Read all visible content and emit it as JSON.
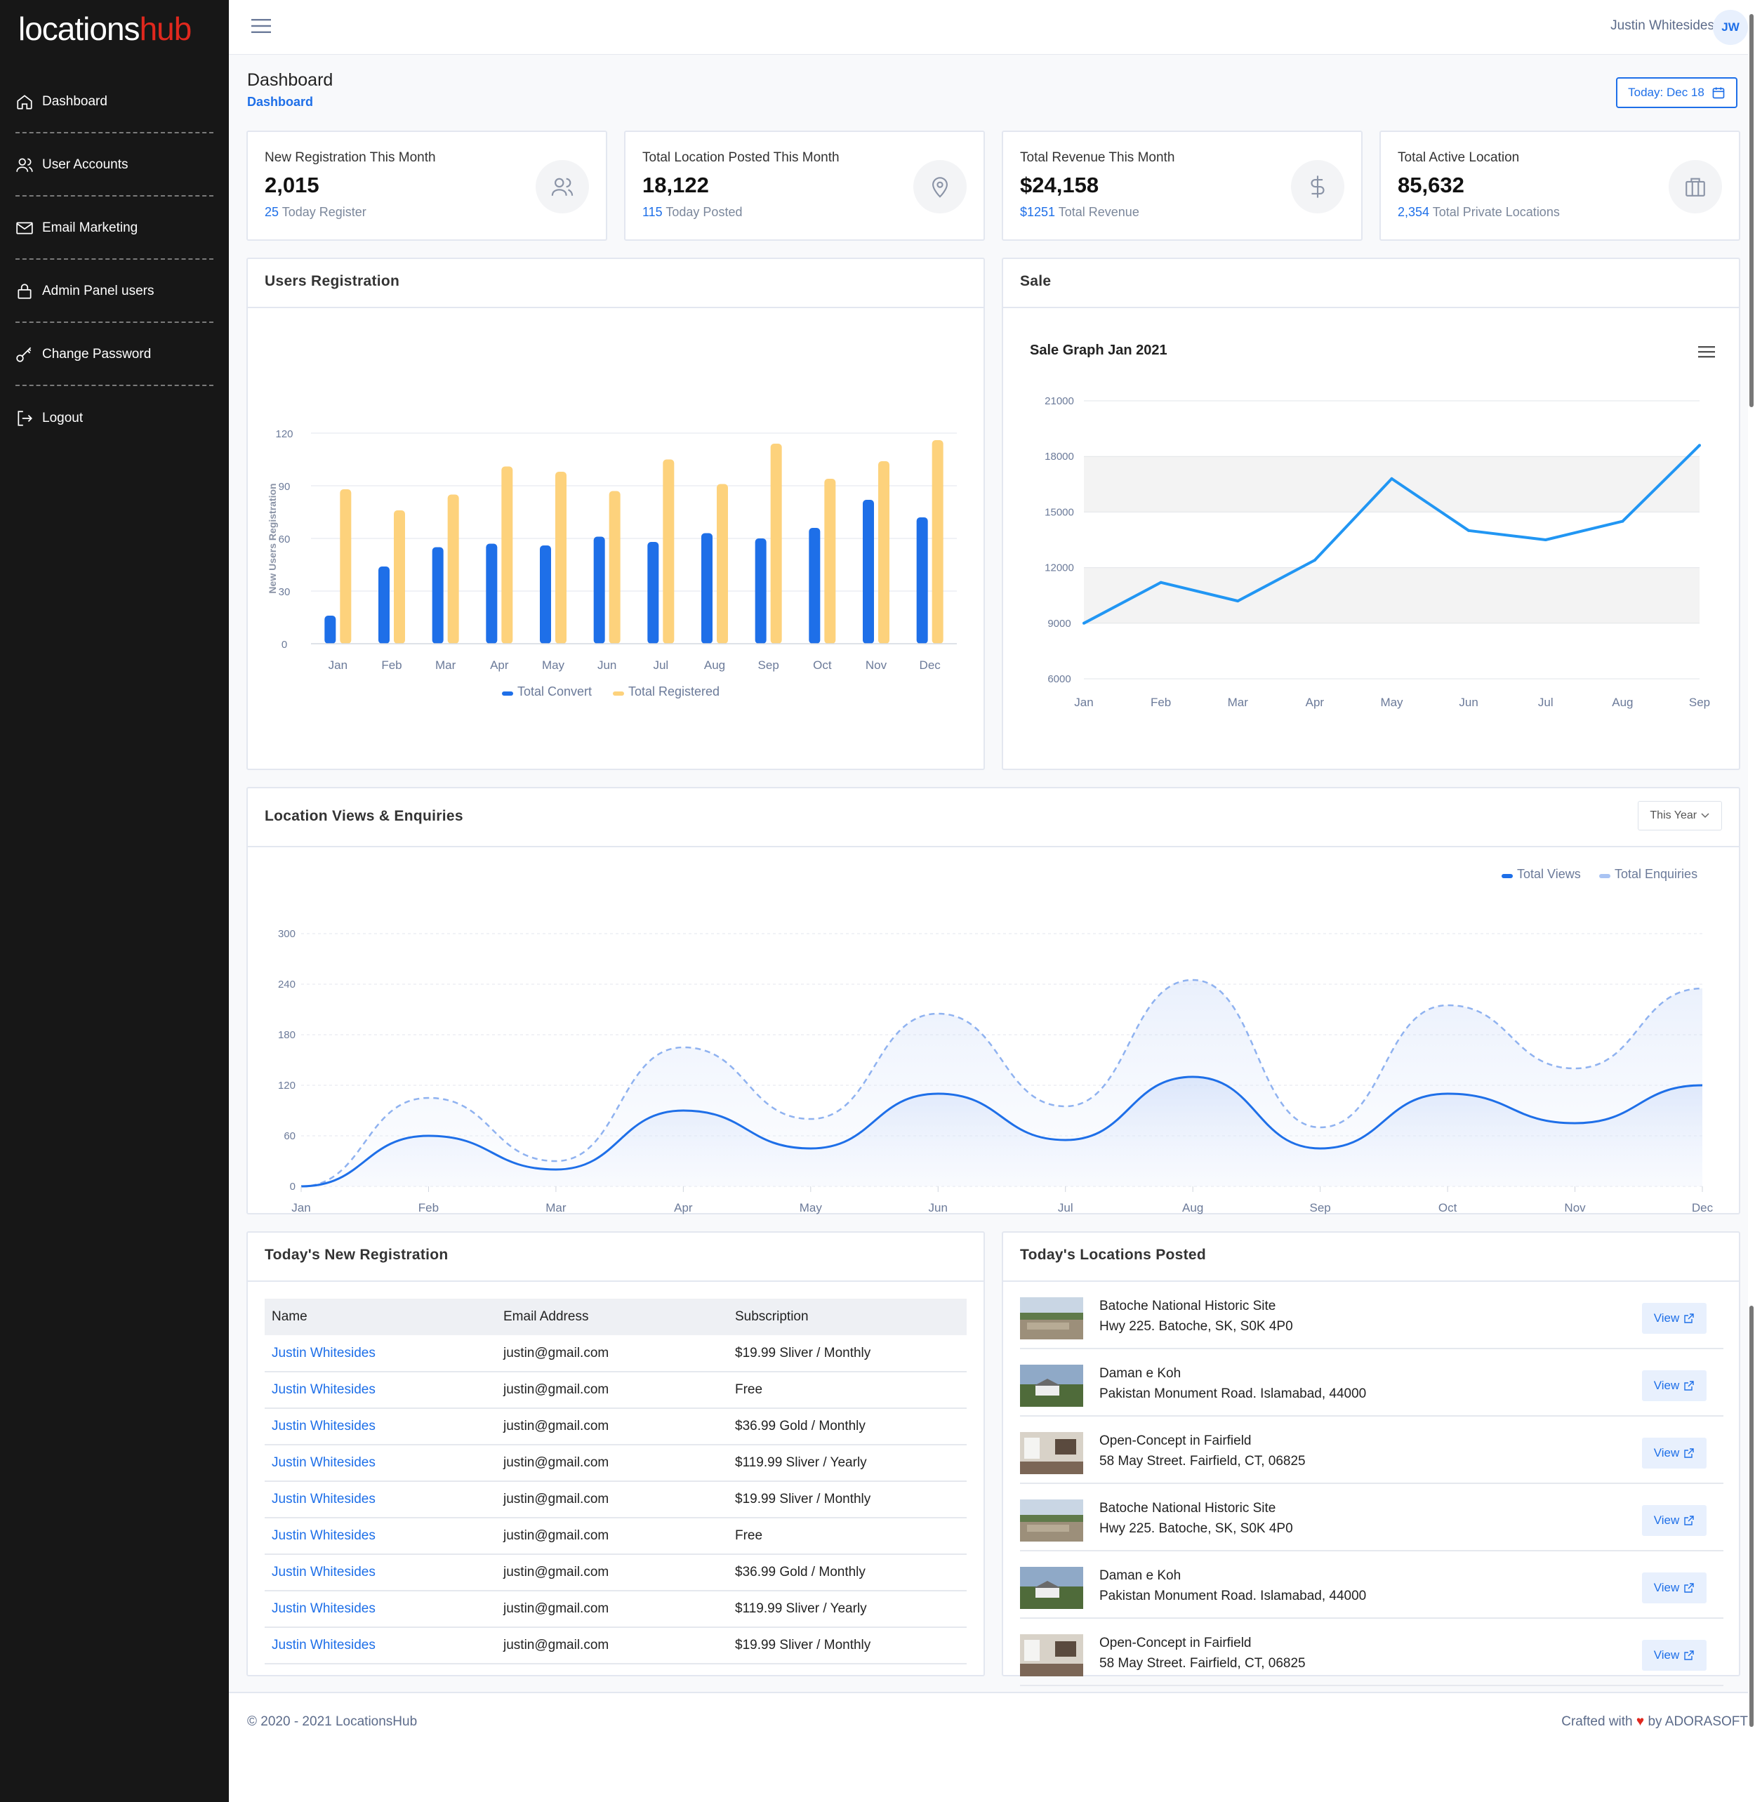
{
  "brand": {
    "name_part1": "locations",
    "name_part2": "hub"
  },
  "sidebar": {
    "items": [
      {
        "label": "Dashboard",
        "icon": "home-icon"
      },
      {
        "label": "User Accounts",
        "icon": "users-icon"
      },
      {
        "label": "Email Marketing",
        "icon": "mail-icon"
      },
      {
        "label": "Admin Panel users",
        "icon": "lock-icon"
      },
      {
        "label": "Change Password",
        "icon": "key-icon"
      },
      {
        "label": "Logout",
        "icon": "logout-icon"
      }
    ]
  },
  "header": {
    "user_name": "Justin Whitesides",
    "avatar_initials": "JW"
  },
  "page": {
    "title": "Dashboard",
    "breadcrumb": "Dashboard",
    "today_label": "Today:",
    "today_value": "Dec 18"
  },
  "stats": [
    {
      "label": "New Registration This Month",
      "value": "2,015",
      "sub_value": "25",
      "sub_label": "Today Register",
      "icon": "users-icon"
    },
    {
      "label": "Total Location Posted This Month",
      "value": "18,122",
      "sub_value": "115",
      "sub_label": "Today Posted",
      "icon": "map-pin-icon"
    },
    {
      "label": "Total Revenue This Month",
      "value": "$24,158",
      "sub_value": "$1251",
      "sub_label": "Total Revenue",
      "icon": "dollar-icon"
    },
    {
      "label": "Total Active Location",
      "value": "85,632",
      "sub_value": "2,354",
      "sub_label": "Total Private Locations",
      "icon": "briefcase-icon"
    }
  ],
  "cards": {
    "users_registration": "Users Registration",
    "sale": "Sale",
    "location_views": "Location Views & Enquiries",
    "period_select": "This Year",
    "new_registration": "Today's New Registration",
    "locations_posted": "Today's Locations Posted"
  },
  "registrations": {
    "headers": [
      "Name",
      "Email Address",
      "Subscription"
    ],
    "rows": [
      [
        "Justin Whitesides",
        "justin@gmail.com",
        "$19.99 Sliver / Monthly"
      ],
      [
        "Justin Whitesides",
        "justin@gmail.com",
        "Free"
      ],
      [
        "Justin Whitesides",
        "justin@gmail.com",
        "$36.99 Gold / Monthly"
      ],
      [
        "Justin Whitesides",
        "justin@gmail.com",
        "$119.99 Sliver / Yearly"
      ],
      [
        "Justin Whitesides",
        "justin@gmail.com",
        "$19.99 Sliver / Monthly"
      ],
      [
        "Justin Whitesides",
        "justin@gmail.com",
        "Free"
      ],
      [
        "Justin Whitesides",
        "justin@gmail.com",
        "$36.99 Gold / Monthly"
      ],
      [
        "Justin Whitesides",
        "justin@gmail.com",
        "$119.99 Sliver / Yearly"
      ],
      [
        "Justin Whitesides",
        "justin@gmail.com",
        "$19.99 Sliver / Monthly"
      ]
    ]
  },
  "locations": {
    "view_label": "View",
    "items": [
      {
        "title": "Batoche National Historic Site",
        "address": "Hwy 225. Batoche, SK, S0K 4P0",
        "thumb": "field"
      },
      {
        "title": "Daman e Koh",
        "address": "Pakistan Monument Road. Islamabad, 44000",
        "thumb": "house"
      },
      {
        "title": "Open-Concept in Fairfield",
        "address": "58 May Street. Fairfield, CT, 06825",
        "thumb": "interior"
      },
      {
        "title": "Batoche National Historic Site",
        "address": "Hwy 225. Batoche, SK, S0K 4P0",
        "thumb": "field"
      },
      {
        "title": "Daman e Koh",
        "address": "Pakistan Monument Road. Islamabad, 44000",
        "thumb": "house"
      },
      {
        "title": "Open-Concept in Fairfield",
        "address": "58 May Street. Fairfield, CT, 06825",
        "thumb": "interior"
      }
    ]
  },
  "footer": {
    "copyright": "© 2020 - 2021 LocationsHub",
    "crafted_prefix": "Crafted with",
    "crafted_suffix": "by ADORASOFT"
  },
  "colors": {
    "accent": "#1e6fe8",
    "bar_secondary": "#fdd27c",
    "line": "#2196f3",
    "brand_red": "#e0281e"
  },
  "chart_data": [
    {
      "type": "bar",
      "title": "",
      "categories": [
        "Jan",
        "Feb",
        "Mar",
        "Apr",
        "May",
        "Jun",
        "Jul",
        "Aug",
        "Sep",
        "Oct",
        "Nov",
        "Dec"
      ],
      "series": [
        {
          "name": "Total Convert",
          "values": [
            16,
            44,
            55,
            57,
            56,
            61,
            58,
            63,
            60,
            66,
            82,
            72
          ]
        },
        {
          "name": "Total Registered",
          "values": [
            88,
            76,
            85,
            101,
            98,
            87,
            105,
            91,
            114,
            94,
            104,
            116
          ]
        }
      ],
      "xlabel": "",
      "ylabel": "New Users Registration",
      "ylim": [
        0,
        120
      ],
      "yticks": [
        0,
        30,
        60,
        90,
        120
      ],
      "legend": "bottom-center",
      "grid": true
    },
    {
      "type": "line",
      "title": "Sale Graph Jan 2021",
      "categories": [
        "Jan",
        "Feb",
        "Mar",
        "Apr",
        "May",
        "Jun",
        "Jul",
        "Aug",
        "Sep"
      ],
      "series": [
        {
          "values": [
            9000,
            11200,
            10200,
            12400,
            16800,
            14000,
            13500,
            14500,
            18600
          ]
        }
      ],
      "ylim": [
        6000,
        21000
      ],
      "yticks": [
        6000,
        9000,
        12000,
        15000,
        18000,
        21000
      ],
      "grid": true,
      "menu_icon": "hamburger-icon"
    },
    {
      "type": "area",
      "title": "",
      "categories": [
        "Jan",
        "Feb",
        "Mar",
        "Apr",
        "May",
        "Jun",
        "Jul",
        "Aug",
        "Sep",
        "Oct",
        "Nov",
        "Dec"
      ],
      "series": [
        {
          "name": "Total Views",
          "values": [
            0,
            60,
            20,
            90,
            45,
            110,
            55,
            130,
            45,
            110,
            75,
            120
          ],
          "style": "solid"
        },
        {
          "name": "Total Enquiries",
          "values": [
            0,
            105,
            30,
            165,
            80,
            205,
            95,
            245,
            70,
            215,
            140,
            235
          ],
          "style": "dashed"
        }
      ],
      "ylim": [
        0,
        300
      ],
      "yticks": [
        0,
        60,
        120,
        180,
        240,
        300
      ],
      "legend": "top-right",
      "grid": true
    }
  ]
}
